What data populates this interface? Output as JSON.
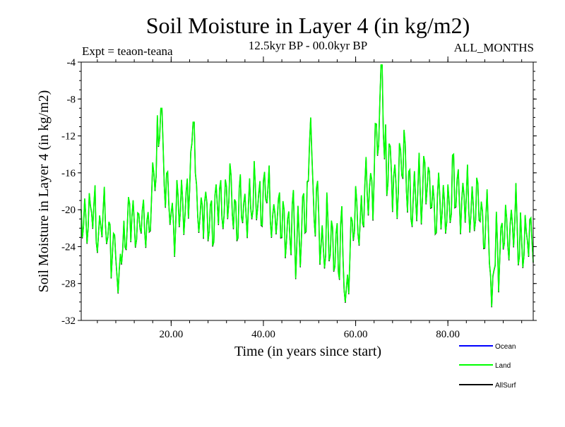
{
  "chart_data": {
    "type": "line",
    "title": "Soil Moisture in Layer 4 (in kg/m2)",
    "subtitle_left": "Expt = teaon-teana",
    "subtitle_center": "12.5kyr BP - 00.0kyr BP",
    "subtitle_right": "ALL_MONTHS",
    "xlabel": "Time (in years since start)",
    "ylabel": "Soil Moisture in Layer 4 (in kg/m2)",
    "xlim": [
      0.5,
      98.5
    ],
    "ylim": [
      -32,
      -4
    ],
    "x_ticks": [
      20,
      40,
      60,
      80
    ],
    "x_tick_labels": [
      "20.00",
      "40.00",
      "60.00",
      "80.00"
    ],
    "y_ticks": [
      -4,
      -8,
      -12,
      -16,
      -20,
      -24,
      -28,
      -32
    ],
    "y_tick_labels": [
      "-4",
      "-8",
      "-12",
      "-16",
      "-20",
      "-24",
      "-28",
      "-32"
    ],
    "legend_position": "bottom-right",
    "colors": {
      "ocean": "#0000ff",
      "land": "#00ff00",
      "allsurf": "#000000"
    },
    "series": [
      {
        "name": "Ocean",
        "values": []
      },
      {
        "name": "Land",
        "x_start": 0.5,
        "x_step": 0.25,
        "envelope_x": [
          0.5,
          2,
          3,
          4,
          5,
          6,
          7,
          8,
          9,
          10,
          11,
          12,
          13,
          14,
          15,
          16,
          17,
          17.5,
          18,
          19,
          20,
          21,
          22,
          23,
          24,
          25,
          26,
          27,
          28,
          29,
          30,
          31,
          32,
          33,
          34,
          35,
          36,
          37,
          38,
          39,
          40,
          41,
          42,
          43,
          44,
          45,
          46,
          47,
          48,
          49,
          50,
          51,
          52,
          53,
          54,
          55,
          56,
          57,
          58,
          59,
          60,
          61,
          62,
          63,
          64,
          65,
          66,
          67,
          68,
          69,
          70,
          71,
          72,
          73,
          74,
          75,
          76,
          77,
          78,
          79,
          80,
          81,
          82,
          83,
          84,
          85,
          86,
          87,
          88,
          89,
          90,
          91,
          92,
          93,
          94,
          95,
          96,
          97,
          98.5
        ],
        "mid": [
          -21,
          -21,
          -20.5,
          -21,
          -21.5,
          -22,
          -23,
          -24,
          -23.5,
          -22,
          -21.5,
          -21,
          -21.5,
          -22,
          -21,
          -18,
          -14,
          -13,
          -15,
          -18.5,
          -20,
          -20.5,
          -20,
          -19,
          -17,
          -17.5,
          -19.5,
          -20.5,
          -21,
          -21,
          -20,
          -19.5,
          -19,
          -19,
          -19.5,
          -20,
          -20,
          -19.5,
          -19,
          -18.5,
          -18.5,
          -19,
          -20,
          -21,
          -21.5,
          -21.5,
          -22,
          -22.5,
          -22,
          -21,
          -19,
          -19.5,
          -21,
          -22.5,
          -23,
          -23.5,
          -24,
          -25,
          -24.5,
          -23,
          -21.5,
          -20.5,
          -19.5,
          -18.5,
          -16,
          -12.5,
          -13,
          -15,
          -17,
          -16,
          -15.5,
          -16,
          -17.5,
          -19,
          -18,
          -17,
          -18,
          -19,
          -20,
          -20,
          -19,
          -18,
          -17.5,
          -18.5,
          -19.5,
          -20,
          -20,
          -20.5,
          -21.5,
          -22,
          -23,
          -24,
          -23,
          -22,
          -21,
          -22,
          -23.5,
          -24,
          -22
        ],
        "amp": [
          2.5,
          3,
          3,
          3.5,
          3.5,
          3.5,
          3.5,
          4,
          4,
          3.5,
          3.5,
          3,
          3,
          3,
          3,
          3.5,
          4.5,
          4.5,
          4.5,
          3.5,
          3.5,
          3.5,
          3.5,
          3.5,
          4,
          4,
          3.5,
          3.5,
          3.5,
          3.5,
          3.5,
          3.5,
          3.5,
          3.5,
          3.5,
          3.5,
          3.5,
          3.5,
          3.5,
          3.5,
          3.5,
          3.5,
          3.5,
          3.5,
          3.5,
          3.5,
          4,
          4,
          4,
          4.5,
          4.5,
          4,
          4,
          4,
          4,
          4,
          4.5,
          4.5,
          4.5,
          4,
          4,
          3.5,
          3.5,
          4,
          4.5,
          5,
          5,
          4.5,
          4,
          4,
          4,
          4,
          4,
          4,
          4,
          4,
          4,
          4,
          4,
          4,
          3.5,
          3.5,
          3.5,
          3.5,
          3.5,
          3.5,
          3.5,
          3.5,
          4,
          4,
          4.5,
          4.5,
          4,
          4,
          4,
          4,
          4,
          3.5,
          3
        ],
        "peaks": [
          [
            8.5,
            -29
          ],
          [
            17.8,
            -9
          ],
          [
            24.8,
            -10.5
          ],
          [
            50.2,
            -10
          ],
          [
            57.8,
            -30
          ],
          [
            65.6,
            -4.3
          ],
          [
            89.5,
            -30.5
          ]
        ]
      },
      {
        "name": "AllSurf",
        "values": "same as Land"
      }
    ]
  }
}
